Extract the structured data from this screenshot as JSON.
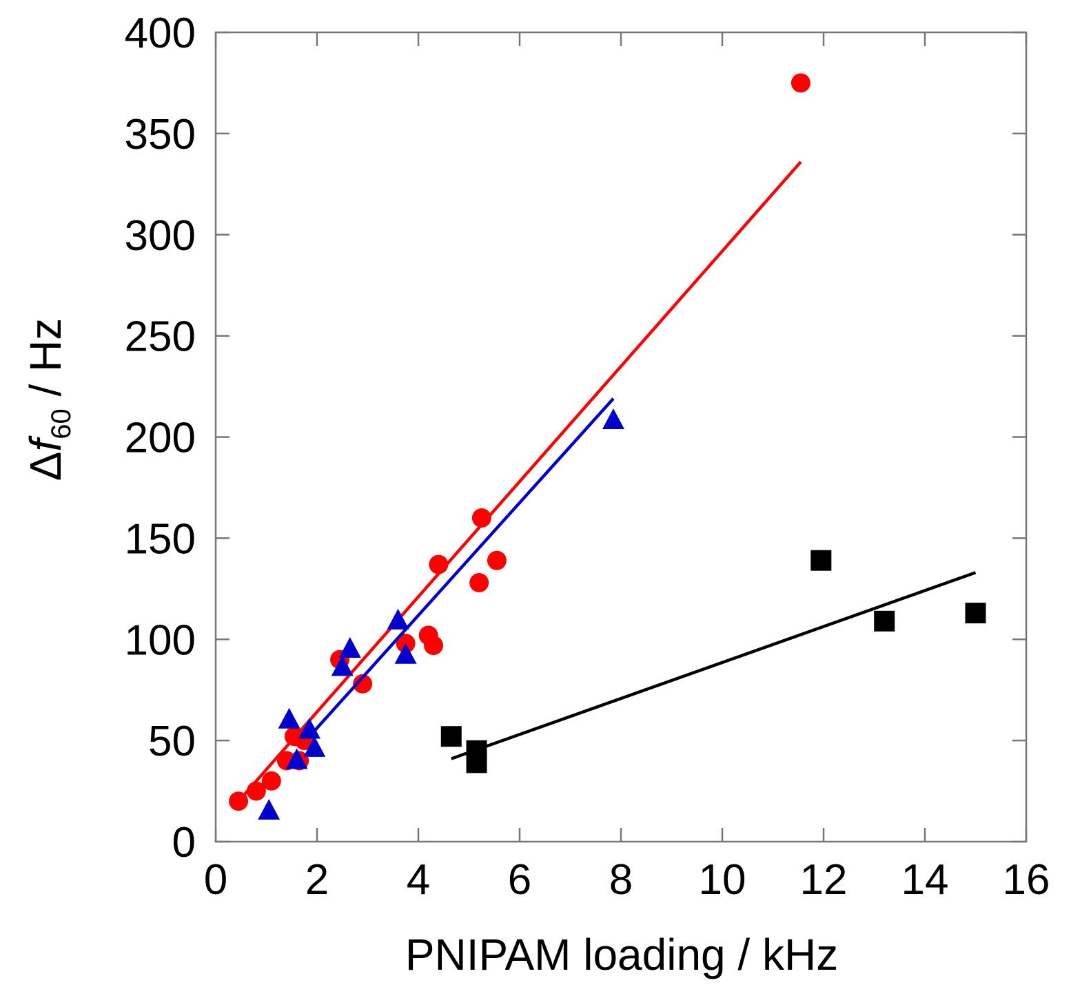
{
  "chart_data": {
    "type": "scatter",
    "title": "",
    "xlabel": "PNIPAM loading / kHz",
    "ylabel": {
      "delta": "Δ",
      "symbol": "f",
      "subscript": "60",
      "unit": " / Hz"
    },
    "xlim": [
      0,
      16
    ],
    "ylim": [
      0,
      400
    ],
    "xticks": [
      0,
      2,
      4,
      6,
      8,
      10,
      12,
      14,
      16
    ],
    "yticks": [
      0,
      50,
      100,
      150,
      200,
      250,
      300,
      350,
      400
    ],
    "grid": false,
    "series": [
      {
        "name": "red circles",
        "marker": "circle",
        "color": "#ff0000",
        "points": [
          [
            0.45,
            20
          ],
          [
            0.8,
            25
          ],
          [
            1.1,
            30
          ],
          [
            1.4,
            40
          ],
          [
            1.55,
            52
          ],
          [
            1.65,
            40
          ],
          [
            1.75,
            50
          ],
          [
            2.45,
            90
          ],
          [
            2.9,
            78
          ],
          [
            3.75,
            98
          ],
          [
            4.2,
            102
          ],
          [
            4.3,
            97
          ],
          [
            4.4,
            137
          ],
          [
            5.2,
            128
          ],
          [
            5.25,
            160
          ],
          [
            5.55,
            139
          ],
          [
            11.55,
            375
          ]
        ],
        "fit": {
          "x0": 0.45,
          "y0": 20,
          "x1": 11.55,
          "y1": 336
        }
      },
      {
        "name": "blue triangles",
        "marker": "triangle",
        "color": "#0000cc",
        "points": [
          [
            1.05,
            15
          ],
          [
            1.45,
            60
          ],
          [
            1.6,
            40
          ],
          [
            1.85,
            55
          ],
          [
            1.95,
            46
          ],
          [
            2.5,
            86
          ],
          [
            2.65,
            95
          ],
          [
            3.6,
            109
          ],
          [
            3.75,
            92
          ],
          [
            7.85,
            208
          ]
        ],
        "fit": {
          "x0": 1.85,
          "y0": 52,
          "x1": 7.85,
          "y1": 219
        }
      },
      {
        "name": "black squares",
        "marker": "square",
        "color": "#000000",
        "points": [
          [
            4.65,
            52
          ],
          [
            5.15,
            45
          ],
          [
            5.15,
            39
          ],
          [
            11.95,
            139
          ],
          [
            13.2,
            109
          ],
          [
            15.0,
            113
          ]
        ],
        "fit": {
          "x0": 4.65,
          "y0": 41,
          "x1": 15.0,
          "y1": 133
        }
      }
    ]
  }
}
